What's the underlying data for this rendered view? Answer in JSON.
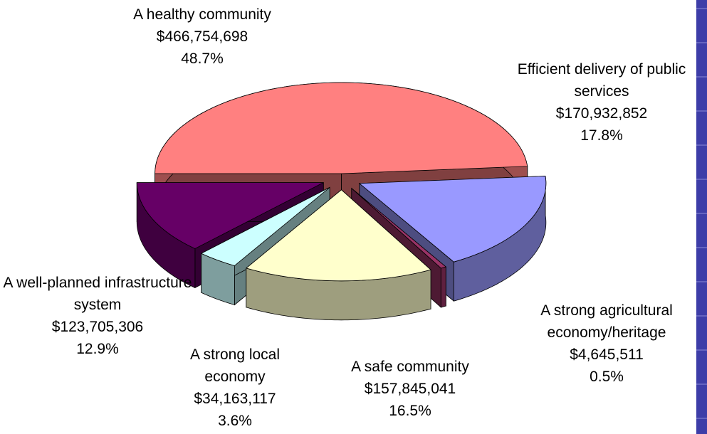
{
  "chart_data": {
    "type": "pie3d",
    "categories": [
      "A healthy community",
      "Efficient delivery of public services",
      "A strong agricultural economy/heritage",
      "A safe community",
      "A strong local economy",
      "A well-planned infrastructure system"
    ],
    "values": [
      466754698,
      170932852,
      4645511,
      157845041,
      34163117,
      123705306
    ],
    "value_labels": [
      "$466,754,698",
      "$170,932,852",
      "$4,645,511",
      "$157,845,041",
      "$34,163,117",
      "$123,705,306"
    ],
    "shares": [
      48.7,
      17.8,
      0.5,
      16.5,
      3.6,
      12.9
    ],
    "share_labels": [
      "48.7%",
      "17.8%",
      "0.5%",
      "16.5%",
      "3.6%",
      "12.9%"
    ],
    "colors": [
      "#ff8080",
      "#9999ff",
      "#993366",
      "#ffffcc",
      "#ccffff",
      "#660066"
    ]
  }
}
